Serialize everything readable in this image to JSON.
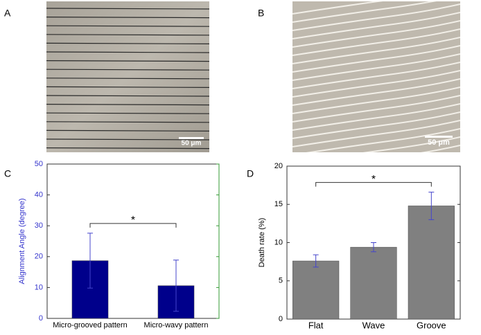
{
  "panels": [
    {
      "label": "A",
      "scale_bar": "50 μm"
    },
    {
      "label": "B",
      "scale_bar": "50 μm"
    },
    {
      "label": "C"
    },
    {
      "label": "D"
    }
  ],
  "chart_data": [
    {
      "type": "bar",
      "ylabel": "Alignment Angle (degree)",
      "categories": [
        "Micro-grooved pattern",
        "Micro-wavy pattern"
      ],
      "values": [
        18.7,
        10.6
      ],
      "errors": [
        8.9,
        8.3
      ],
      "color": "#00008b",
      "ylim": [
        0,
        50
      ],
      "yticks": [
        0,
        10,
        20,
        30,
        40,
        50
      ],
      "annotation": "*"
    },
    {
      "type": "bar",
      "ylabel": "Death rate (%)",
      "categories": [
        "Flat",
        "Wave",
        "Groove"
      ],
      "values": [
        7.6,
        9.4,
        14.8
      ],
      "errors": [
        0.8,
        0.6,
        1.8
      ],
      "color": "#808080",
      "ylim": [
        0,
        20
      ],
      "yticks": [
        0,
        5,
        10,
        15,
        20
      ],
      "annotation": "*"
    }
  ]
}
